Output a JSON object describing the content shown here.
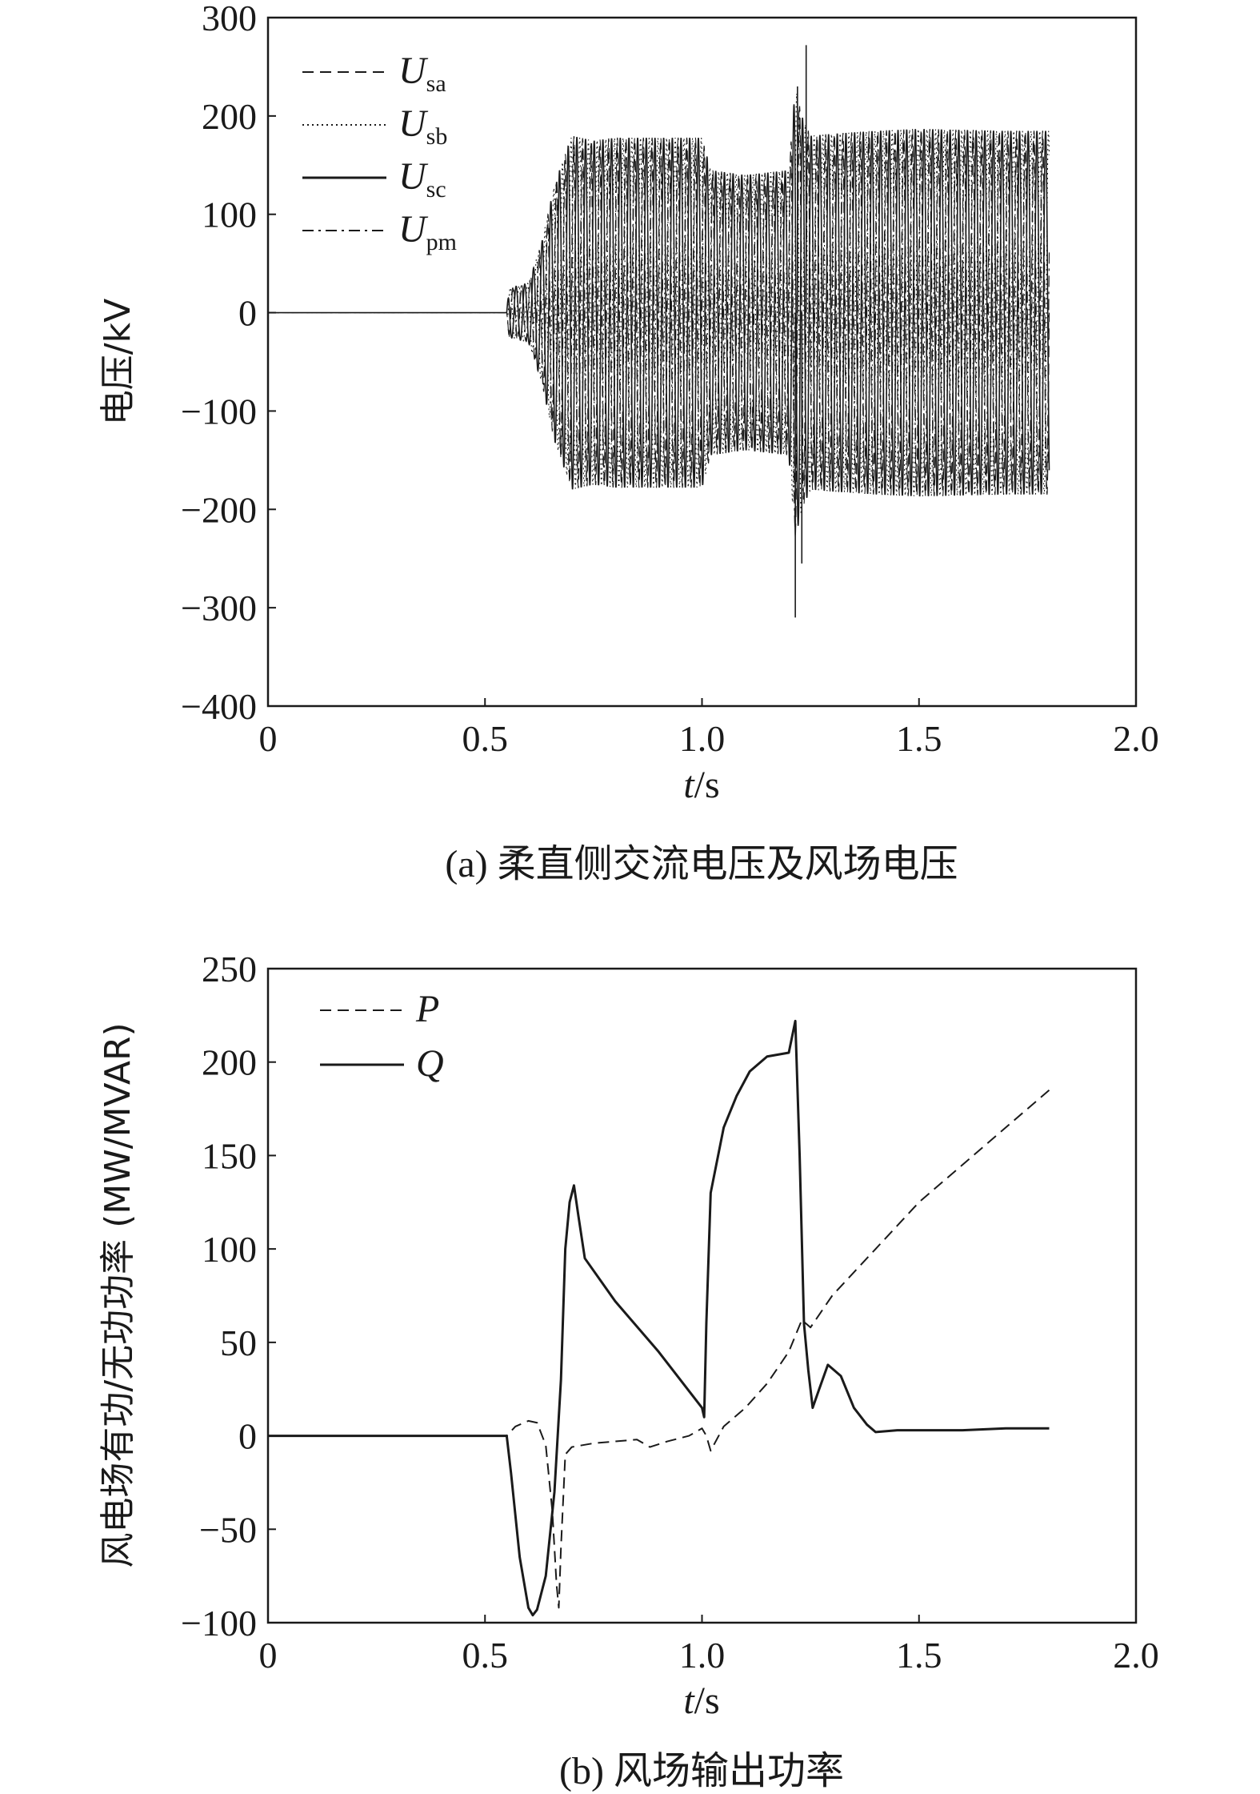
{
  "chart_data": [
    {
      "type": "line",
      "caption": "(a) 柔直侧交流电压及风场电压",
      "xlabel_italic": "t",
      "xlabel_unit": "/s",
      "ylabel": "电压/kV",
      "xlim": [
        0,
        2.0
      ],
      "ylim": [
        -400,
        300
      ],
      "xticks": [
        0,
        0.5,
        1.0,
        1.5,
        2.0
      ],
      "xtick_labels": [
        "0",
        "0.5",
        "1.0",
        "1.5",
        "2.0"
      ],
      "yticks": [
        300,
        200,
        100,
        0,
        -100,
        -200,
        -300,
        -400
      ],
      "ytick_labels": [
        "300",
        "200",
        "100",
        "0",
        "−100",
        "−200",
        "−300",
        "−400"
      ],
      "grid": false,
      "legend_position": "top-left",
      "series": [
        {
          "name": "U",
          "sub": "sa",
          "style": "dashed"
        },
        {
          "name": "U",
          "sub": "sb",
          "style": "dotted"
        },
        {
          "name": "U",
          "sub": "sc",
          "style": "solid"
        },
        {
          "name": "U",
          "sub": "pm",
          "style": "dashdot"
        }
      ],
      "oscillation_frequency_hz": 50,
      "envelope": [
        [
          0.0,
          0
        ],
        [
          0.55,
          0
        ],
        [
          0.555,
          25
        ],
        [
          0.6,
          30
        ],
        [
          0.63,
          70
        ],
        [
          0.66,
          130
        ],
        [
          0.7,
          180
        ],
        [
          0.75,
          175
        ],
        [
          0.8,
          178
        ],
        [
          0.9,
          178
        ],
        [
          1.0,
          178
        ],
        [
          1.02,
          145
        ],
        [
          1.1,
          140
        ],
        [
          1.2,
          145
        ],
        [
          1.215,
          230
        ],
        [
          1.23,
          200
        ],
        [
          1.25,
          180
        ],
        [
          1.3,
          182
        ],
        [
          1.4,
          185
        ],
        [
          1.5,
          187
        ],
        [
          1.6,
          186
        ],
        [
          1.7,
          185
        ],
        [
          1.8,
          185
        ]
      ],
      "spikes": [
        [
          1.22,
          230
        ],
        [
          1.23,
          -255
        ],
        [
          1.24,
          272
        ],
        [
          1.215,
          -310
        ]
      ]
    },
    {
      "type": "line",
      "caption": "(b) 风场输出功率",
      "xlabel_italic": "t",
      "xlabel_unit": "/s",
      "ylabel": "风电场有功/无功功率 (MW/MVAR)",
      "xlim": [
        0,
        2.0
      ],
      "ylim": [
        -100,
        250
      ],
      "xticks": [
        0,
        0.5,
        1.0,
        1.5,
        2.0
      ],
      "xtick_labels": [
        "0",
        "0.5",
        "1.0",
        "1.5",
        "2.0"
      ],
      "yticks": [
        250,
        200,
        150,
        100,
        50,
        0,
        -50,
        -100
      ],
      "ytick_labels": [
        "250",
        "200",
        "150",
        "100",
        "50",
        "0",
        "−50",
        "−100"
      ],
      "grid": false,
      "legend_position": "top-left",
      "series": [
        {
          "name": "P",
          "style": "dashed",
          "points": [
            [
              0.0,
              0
            ],
            [
              0.55,
              0
            ],
            [
              0.57,
              5
            ],
            [
              0.6,
              8
            ],
            [
              0.62,
              7
            ],
            [
              0.64,
              -5
            ],
            [
              0.655,
              -40
            ],
            [
              0.665,
              -80
            ],
            [
              0.67,
              -92
            ],
            [
              0.675,
              -60
            ],
            [
              0.685,
              -10
            ],
            [
              0.7,
              -6
            ],
            [
              0.75,
              -4
            ],
            [
              0.8,
              -3
            ],
            [
              0.85,
              -2
            ],
            [
              0.88,
              -6
            ],
            [
              0.92,
              -3
            ],
            [
              0.97,
              0
            ],
            [
              1.0,
              4
            ],
            [
              1.01,
              0
            ],
            [
              1.02,
              -8
            ],
            [
              1.05,
              5
            ],
            [
              1.1,
              15
            ],
            [
              1.15,
              28
            ],
            [
              1.2,
              45
            ],
            [
              1.23,
              62
            ],
            [
              1.25,
              58
            ],
            [
              1.3,
              75
            ],
            [
              1.4,
              100
            ],
            [
              1.5,
              125
            ],
            [
              1.6,
              145
            ],
            [
              1.7,
              165
            ],
            [
              1.8,
              185
            ]
          ]
        },
        {
          "name": "Q",
          "style": "solid",
          "points": [
            [
              0.0,
              0
            ],
            [
              0.55,
              0
            ],
            [
              0.56,
              -20
            ],
            [
              0.58,
              -65
            ],
            [
              0.6,
              -92
            ],
            [
              0.61,
              -96
            ],
            [
              0.62,
              -93
            ],
            [
              0.64,
              -75
            ],
            [
              0.66,
              -30
            ],
            [
              0.675,
              30
            ],
            [
              0.685,
              100
            ],
            [
              0.695,
              125
            ],
            [
              0.705,
              134
            ],
            [
              0.715,
              118
            ],
            [
              0.73,
              95
            ],
            [
              0.8,
              72
            ],
            [
              0.9,
              45
            ],
            [
              1.0,
              15
            ],
            [
              1.005,
              10
            ],
            [
              1.01,
              60
            ],
            [
              1.02,
              130
            ],
            [
              1.05,
              165
            ],
            [
              1.08,
              182
            ],
            [
              1.11,
              195
            ],
            [
              1.15,
              203
            ],
            [
              1.2,
              205
            ],
            [
              1.215,
              222
            ],
            [
              1.225,
              150
            ],
            [
              1.235,
              60
            ],
            [
              1.245,
              35
            ],
            [
              1.255,
              15
            ],
            [
              1.27,
              25
            ],
            [
              1.29,
              38
            ],
            [
              1.3,
              36
            ],
            [
              1.32,
              32
            ],
            [
              1.35,
              15
            ],
            [
              1.38,
              6
            ],
            [
              1.4,
              2
            ],
            [
              1.45,
              3
            ],
            [
              1.5,
              3
            ],
            [
              1.6,
              3
            ],
            [
              1.7,
              4
            ],
            [
              1.8,
              4
            ]
          ]
        }
      ]
    }
  ]
}
